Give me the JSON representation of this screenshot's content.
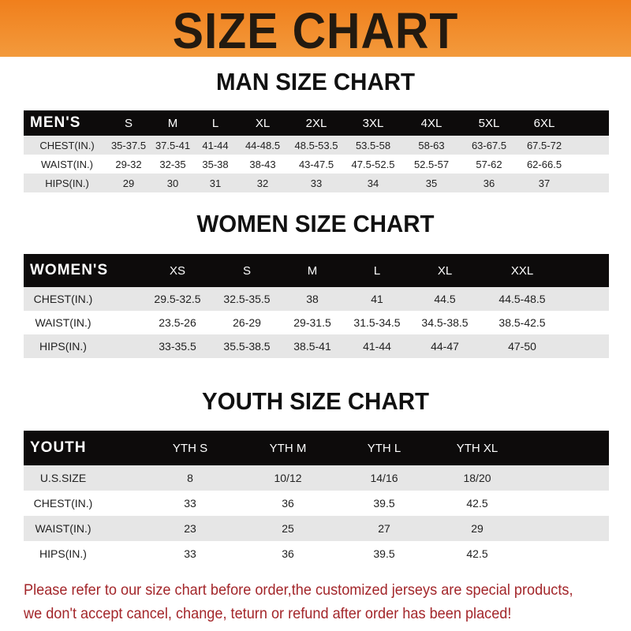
{
  "banner": {
    "title": "SIZE CHART",
    "color": "#f08a2a"
  },
  "men": {
    "title": "MAN SIZE CHART",
    "header": [
      "MEN'S",
      "S",
      "M",
      "L",
      "XL",
      "2XL",
      "3XL",
      "4XL",
      "5XL",
      "6XL"
    ],
    "rows": [
      [
        "CHEST(IN.)",
        "35-37.5",
        "37.5-41",
        "41-44",
        "44-48.5",
        "48.5-53.5",
        "53.5-58",
        "58-63",
        "63-67.5",
        "67.5-72"
      ],
      [
        "WAIST(IN.)",
        "29-32",
        "32-35",
        "35-38",
        "38-43",
        "43-47.5",
        "47.5-52.5",
        "52.5-57",
        "57-62",
        "62-66.5"
      ],
      [
        "HIPS(IN.)",
        "29",
        "30",
        "31",
        "32",
        "33",
        "34",
        "35",
        "36",
        "37"
      ]
    ]
  },
  "women": {
    "title": "WOMEN SIZE CHART",
    "header": [
      "WOMEN'S",
      "XS",
      "S",
      "M",
      "L",
      "XL",
      "XXL"
    ],
    "rows": [
      [
        "CHEST(IN.)",
        "29.5-32.5",
        "32.5-35.5",
        "38",
        "41",
        "44.5",
        "44.5-48.5"
      ],
      [
        "WAIST(IN.)",
        "23.5-26",
        "26-29",
        "29-31.5",
        "31.5-34.5",
        "34.5-38.5",
        "38.5-42.5"
      ],
      [
        "HIPS(IN.)",
        "33-35.5",
        "35.5-38.5",
        "38.5-41",
        "41-44",
        "44-47",
        "47-50"
      ]
    ]
  },
  "youth": {
    "title": "YOUTH SIZE CHART",
    "header": [
      "YOUTH",
      "YTH S",
      "YTH M",
      "YTH L",
      "YTH XL"
    ],
    "rows": [
      [
        "U.S.SIZE",
        "8",
        "10/12",
        "14/16",
        "18/20"
      ],
      [
        "CHEST(IN.)",
        "33",
        "36",
        "39.5",
        "42.5"
      ],
      [
        "WAIST(IN.)",
        "23",
        "25",
        "27",
        "29"
      ],
      [
        "HIPS(IN.)",
        "33",
        "36",
        "39.5",
        "42.5"
      ]
    ]
  },
  "notice": {
    "line1": "Please refer to our size chart before order,the customized jerseys are special products,",
    "line2": "we don't accept cancel, change, teturn or refund after order has been placed!",
    "color": "#a3262a"
  }
}
